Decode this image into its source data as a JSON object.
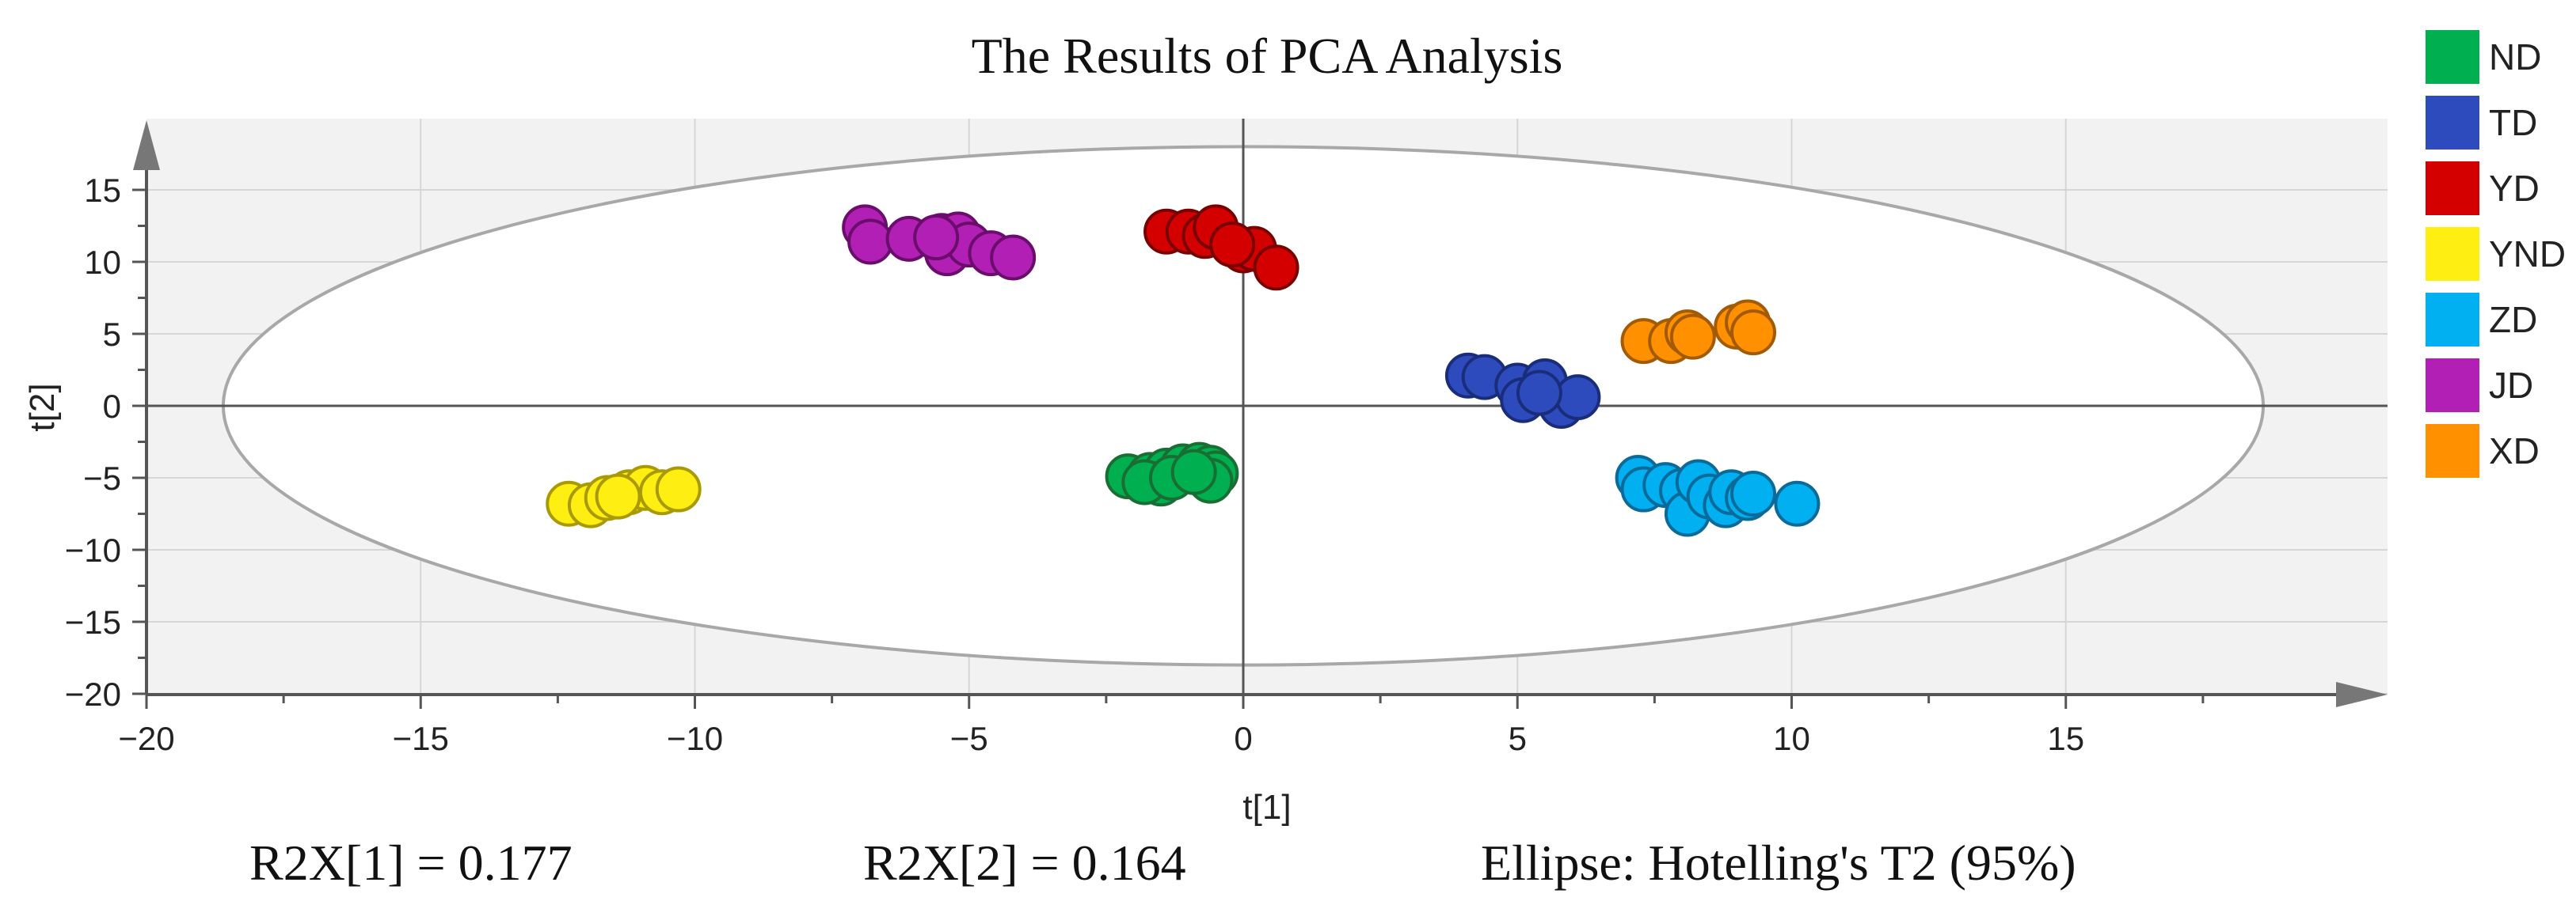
{
  "chart_data": {
    "type": "scatter",
    "title": "The Results of PCA Analysis",
    "xlabel": "t[1]",
    "ylabel": "t[2]",
    "xlim": [
      -20,
      20
    ],
    "ylim": [
      -20,
      20
    ],
    "xticks": [
      -20,
      -15,
      -10,
      -5,
      0,
      5,
      10,
      15
    ],
    "yticks": [
      -20,
      -15,
      -10,
      -5,
      0,
      5,
      10,
      15
    ],
    "grid": true,
    "legend_position": "right",
    "ellipse": {
      "rx": 18.6,
      "ry": 18.0,
      "label": "Ellipse: Hotelling's T2 (95%)"
    },
    "footer": {
      "r2x1": "R2X[1] = 0.177",
      "r2x2": "R2X[2] = 0.164"
    },
    "series": [
      {
        "name": "ND",
        "color": "#00b050",
        "stroke": "#1a6e33",
        "points": [
          [
            -2.1,
            -4.9
          ],
          [
            -1.7,
            -4.8
          ],
          [
            -1.4,
            -4.5
          ],
          [
            -1.1,
            -4.2
          ],
          [
            -0.8,
            -4.1
          ],
          [
            -0.6,
            -4.3
          ],
          [
            -0.5,
            -4.7
          ],
          [
            -0.6,
            -5.2
          ],
          [
            -1.5,
            -5.4
          ],
          [
            -1.8,
            -5.3
          ],
          [
            -1.3,
            -5.0
          ],
          [
            -0.9,
            -4.6
          ]
        ]
      },
      {
        "name": "TD",
        "color": "#2e4bbd",
        "stroke": "#1a2d7a",
        "points": [
          [
            4.1,
            2.1
          ],
          [
            4.4,
            2.0
          ],
          [
            5.0,
            1.4
          ],
          [
            5.1,
            0.4
          ],
          [
            5.5,
            1.7
          ],
          [
            5.8,
            0.0
          ],
          [
            6.1,
            0.6
          ],
          [
            5.4,
            0.9
          ]
        ]
      },
      {
        "name": "YD",
        "color": "#d40000",
        "stroke": "#7a0000",
        "points": [
          [
            -1.4,
            12.1
          ],
          [
            -1.0,
            12.1
          ],
          [
            -0.7,
            11.8
          ],
          [
            -0.5,
            12.4
          ],
          [
            0.0,
            10.8
          ],
          [
            0.2,
            10.9
          ],
          [
            0.6,
            9.6
          ],
          [
            -0.2,
            11.2
          ]
        ]
      },
      {
        "name": "YND",
        "color": "#ffee11",
        "stroke": "#a89a00",
        "points": [
          [
            -12.3,
            -6.8
          ],
          [
            -11.9,
            -6.9
          ],
          [
            -11.6,
            -6.4
          ],
          [
            -11.2,
            -6.0
          ],
          [
            -10.9,
            -5.7
          ],
          [
            -10.6,
            -6.0
          ],
          [
            -10.3,
            -5.8
          ],
          [
            -11.4,
            -6.3
          ]
        ]
      },
      {
        "name": "ZD",
        "color": "#00b0f0",
        "stroke": "#0a6a99",
        "points": [
          [
            7.2,
            -5.0
          ],
          [
            7.3,
            -5.8
          ],
          [
            7.7,
            -5.5
          ],
          [
            8.0,
            -5.9
          ],
          [
            8.1,
            -7.5
          ],
          [
            8.3,
            -5.3
          ],
          [
            8.5,
            -6.3
          ],
          [
            8.8,
            -6.9
          ],
          [
            8.9,
            -6.0
          ],
          [
            9.2,
            -6.4
          ],
          [
            9.3,
            -6.1
          ],
          [
            10.1,
            -6.8
          ]
        ]
      },
      {
        "name": "JD",
        "color": "#b21fb5",
        "stroke": "#6b0d6d",
        "points": [
          [
            -6.9,
            12.4
          ],
          [
            -6.8,
            11.4
          ],
          [
            -6.1,
            11.6
          ],
          [
            -5.5,
            11.8
          ],
          [
            -5.4,
            10.6
          ],
          [
            -5.2,
            11.9
          ],
          [
            -5.0,
            11.2
          ],
          [
            -4.6,
            10.6
          ],
          [
            -4.2,
            10.3
          ],
          [
            -5.6,
            11.7
          ]
        ]
      },
      {
        "name": "XD",
        "color": "#ff9100",
        "stroke": "#a35a00",
        "points": [
          [
            7.3,
            4.5
          ],
          [
            7.8,
            4.5
          ],
          [
            8.1,
            5.1
          ],
          [
            8.2,
            4.8
          ],
          [
            9.0,
            5.5
          ],
          [
            9.2,
            5.8
          ],
          [
            9.3,
            5.1
          ]
        ]
      }
    ]
  }
}
